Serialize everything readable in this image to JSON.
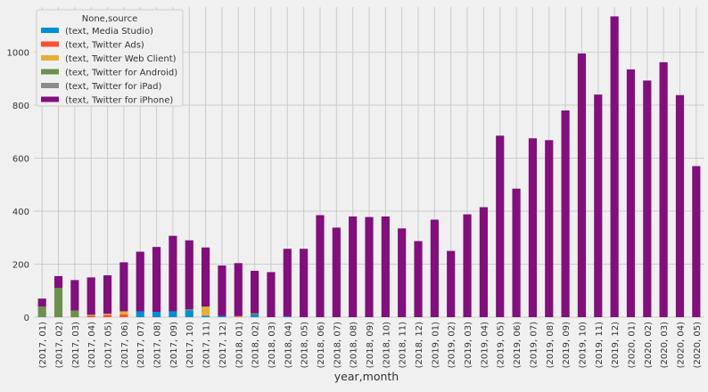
{
  "chart_data": {
    "type": "bar",
    "stacked": true,
    "xlabel": "year,month",
    "ylabel": "",
    "ylim": [
      0,
      1170
    ],
    "yticks": [
      0,
      200,
      400,
      600,
      800,
      1000
    ],
    "grid": true,
    "legend_position": "top-left",
    "legend_title": "None,source",
    "categories": [
      "(2017, 01)",
      "(2017, 02)",
      "(2017, 03)",
      "(2017, 04)",
      "(2017, 05)",
      "(2017, 06)",
      "(2017, 07)",
      "(2017, 08)",
      "(2017, 09)",
      "(2017, 10)",
      "(2017, 11)",
      "(2017, 12)",
      "(2018, 01)",
      "(2018, 02)",
      "(2018, 03)",
      "(2018, 04)",
      "(2018, 05)",
      "(2018, 06)",
      "(2018, 07)",
      "(2018, 08)",
      "(2018, 09)",
      "(2018, 10)",
      "(2018, 11)",
      "(2018, 12)",
      "(2019, 01)",
      "(2019, 02)",
      "(2019, 03)",
      "(2019, 04)",
      "(2019, 05)",
      "(2019, 06)",
      "(2019, 07)",
      "(2019, 08)",
      "(2019, 09)",
      "(2019, 10)",
      "(2019, 11)",
      "(2019, 12)",
      "(2020, 01)",
      "(2020, 02)",
      "(2020, 03)",
      "(2020, 04)",
      "(2020, 05)"
    ],
    "series": [
      {
        "name": "(text, Media Studio)",
        "color": "#008fd5",
        "values": [
          0,
          0,
          0,
          0,
          0,
          0,
          22,
          20,
          22,
          25,
          5,
          5,
          0,
          10,
          0,
          3,
          0,
          0,
          0,
          0,
          0,
          0,
          0,
          0,
          0,
          0,
          0,
          0,
          0,
          0,
          0,
          0,
          0,
          0,
          0,
          0,
          0,
          0,
          0,
          0,
          0
        ]
      },
      {
        "name": "(text, Twitter Ads)",
        "color": "#fc4f30",
        "values": [
          0,
          0,
          0,
          5,
          8,
          10,
          0,
          0,
          0,
          0,
          0,
          0,
          2,
          0,
          0,
          0,
          0,
          0,
          0,
          0,
          0,
          0,
          0,
          0,
          0,
          0,
          0,
          0,
          0,
          0,
          0,
          0,
          0,
          0,
          0,
          0,
          0,
          0,
          0,
          0,
          0
        ]
      },
      {
        "name": "(text, Twitter Web Client)",
        "color": "#e5ae38",
        "values": [
          0,
          0,
          0,
          3,
          5,
          12,
          0,
          0,
          0,
          0,
          35,
          0,
          2,
          0,
          0,
          0,
          0,
          0,
          0,
          0,
          0,
          0,
          0,
          0,
          0,
          0,
          0,
          0,
          0,
          0,
          0,
          0,
          0,
          0,
          0,
          0,
          0,
          0,
          0,
          0,
          0
        ]
      },
      {
        "name": "(text, Twitter for Android)",
        "color": "#6d904f",
        "values": [
          40,
          110,
          25,
          2,
          0,
          0,
          0,
          0,
          0,
          5,
          0,
          0,
          0,
          5,
          0,
          0,
          0,
          0,
          0,
          0,
          0,
          0,
          0,
          0,
          0,
          0,
          0,
          0,
          0,
          0,
          0,
          0,
          0,
          0,
          0,
          0,
          0,
          0,
          0,
          0,
          0
        ]
      },
      {
        "name": "(text, Twitter for iPad)",
        "color": "#8b8b8b",
        "values": [
          0,
          0,
          0,
          0,
          0,
          0,
          0,
          0,
          0,
          0,
          0,
          0,
          0,
          0,
          0,
          0,
          0,
          0,
          0,
          0,
          0,
          0,
          0,
          0,
          0,
          0,
          0,
          0,
          0,
          0,
          0,
          0,
          0,
          0,
          0,
          0,
          0,
          0,
          0,
          0,
          0
        ]
      },
      {
        "name": "(text, Twitter for iPhone)",
        "color": "#810f7c",
        "values": [
          30,
          45,
          115,
          140,
          145,
          185,
          225,
          245,
          285,
          260,
          223,
          190,
          200,
          160,
          170,
          255,
          258,
          385,
          338,
          380,
          378,
          380,
          335,
          287,
          368,
          250,
          388,
          415,
          685,
          485,
          675,
          668,
          780,
          995,
          840,
          1135,
          935,
          893,
          962,
          838,
          570
        ]
      }
    ]
  }
}
